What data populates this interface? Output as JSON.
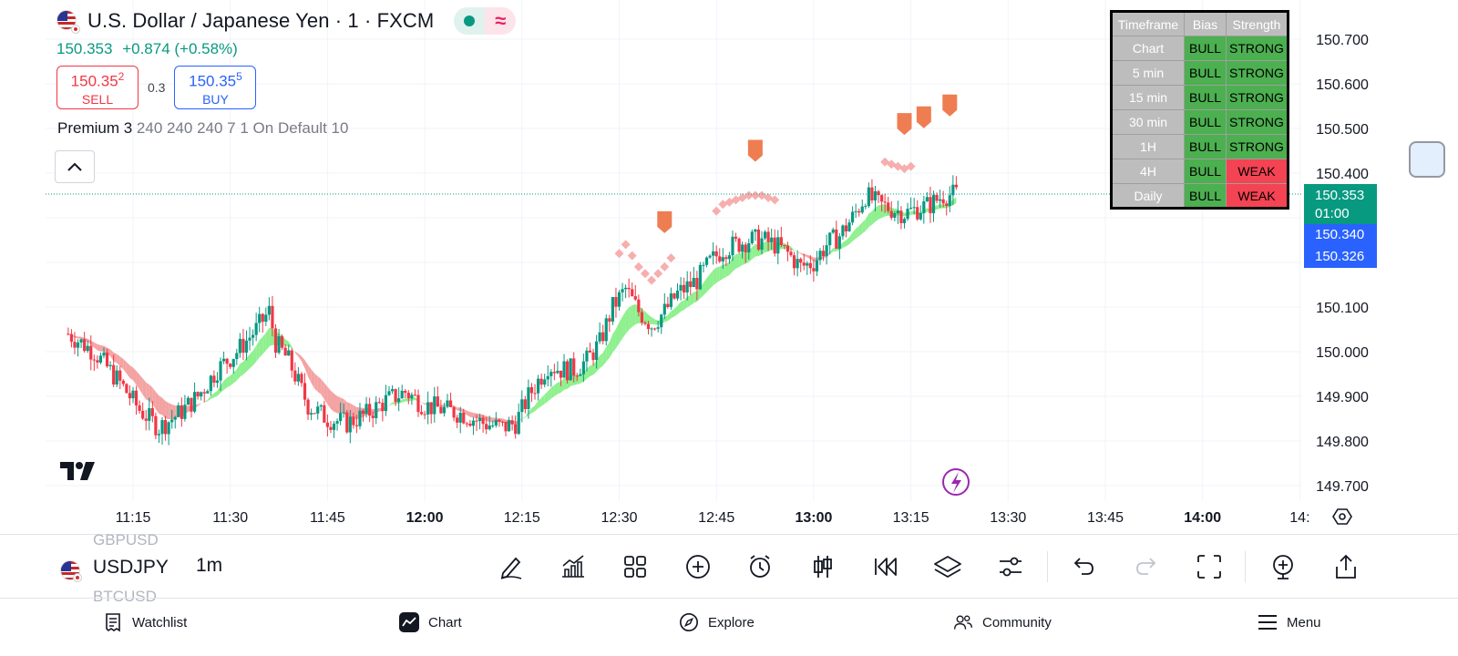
{
  "header": {
    "title": "U.S. Dollar / Japanese Yen · 1 · FXCM",
    "status_icon": "market-open-dot",
    "wave_icon": "≈"
  },
  "quote": {
    "last": "150.353",
    "change": "+0.874 (+0.58%)"
  },
  "trade": {
    "sell_price": "150.35",
    "sell_pip": "2",
    "sell_label": "SELL",
    "spread": "0.3",
    "buy_price": "150.35",
    "buy_pip": "5",
    "buy_label": "BUY"
  },
  "indicator": {
    "name": "Premium 3",
    "params": "240 240 240 7 1 On Default 10"
  },
  "bias_table": {
    "headers": [
      "Timeframe",
      "Bias",
      "Strength"
    ],
    "rows": [
      {
        "tf": "Chart",
        "bias": "BULL",
        "strength": "STRONG"
      },
      {
        "tf": "5 min",
        "bias": "BULL",
        "strength": "STRONG"
      },
      {
        "tf": "15 min",
        "bias": "BULL",
        "strength": "STRONG"
      },
      {
        "tf": "30 min",
        "bias": "BULL",
        "strength": "STRONG"
      },
      {
        "tf": "1H",
        "bias": "BULL",
        "strength": "STRONG"
      },
      {
        "tf": "4H",
        "bias": "BULL",
        "strength": "WEAK"
      },
      {
        "tf": "Daily",
        "bias": "BULL",
        "strength": "WEAK"
      }
    ]
  },
  "price_tags": {
    "last": "150.353",
    "countdown": "01:00",
    "bid": "150.340",
    "ask": "150.326"
  },
  "toolbar": {
    "ghost_above": "GBPUSD",
    "symbol": "USDJPY",
    "ghost_below": "BTCUSD",
    "interval": "1m",
    "icons": [
      "pencil-icon",
      "indicators-icon",
      "layout-icon",
      "add-icon",
      "alert-icon",
      "candle-type-icon",
      "replay-icon",
      "layers-icon",
      "settings-sliders-icon",
      "undo-icon",
      "redo-icon",
      "fullscreen-icon",
      "zoom-icon",
      "share-icon"
    ]
  },
  "nav": {
    "watchlist": "Watchlist",
    "chart": "Chart",
    "explore": "Explore",
    "community": "Community",
    "menu": "Menu"
  },
  "colors": {
    "up": "#089981",
    "down": "#f23645",
    "ribbon_bull": "#8ef08e",
    "ribbon_bear": "#f4a3a3",
    "accent": "#2962ff"
  },
  "chart_data": {
    "type": "candlestick",
    "symbol": "USDJPY",
    "y_ticks": [
      "150.700",
      "150.600",
      "150.500",
      "150.400",
      "150.100",
      "150.000",
      "149.900",
      "149.800",
      "149.700"
    ],
    "ylim": [
      149.68,
      150.72
    ],
    "x_ticks": [
      "11:15",
      "11:30",
      "11:45",
      "12:00",
      "12:15",
      "12:30",
      "12:45",
      "13:00",
      "13:15",
      "13:30",
      "13:45",
      "14:00",
      "14:"
    ],
    "x_bold": [
      "12:00",
      "13:00",
      "14:00"
    ],
    "x_tick_minutes": [
      675,
      690,
      705,
      720,
      735,
      750,
      765,
      780,
      795,
      810,
      825,
      840,
      855
    ],
    "last_price": 150.353,
    "path": [
      [
        665,
        150.04
      ],
      [
        669,
        150.0
      ],
      [
        673,
        149.93
      ],
      [
        676,
        149.87
      ],
      [
        679,
        149.83
      ],
      [
        682,
        149.86
      ],
      [
        685,
        149.9
      ],
      [
        688,
        149.96
      ],
      [
        691,
        150.0
      ],
      [
        694,
        150.05
      ],
      [
        696,
        150.09
      ],
      [
        697,
        150.02
      ],
      [
        699,
        149.98
      ],
      [
        702,
        149.88
      ],
      [
        705,
        149.85
      ],
      [
        708,
        149.84
      ],
      [
        711,
        149.86
      ],
      [
        714,
        149.89
      ],
      [
        717,
        149.91
      ],
      [
        720,
        149.88
      ],
      [
        723,
        149.87
      ],
      [
        726,
        149.86
      ],
      [
        729,
        149.84
      ],
      [
        732,
        149.83
      ],
      [
        734,
        149.84
      ],
      [
        736,
        149.9
      ],
      [
        739,
        149.97
      ],
      [
        741,
        149.96
      ],
      [
        743,
        149.96
      ],
      [
        745,
        149.98
      ],
      [
        747,
        150.02
      ],
      [
        749,
        150.1
      ],
      [
        751,
        150.14
      ],
      [
        753,
        150.09
      ],
      [
        755,
        150.06
      ],
      [
        757,
        150.09
      ],
      [
        759,
        150.13
      ],
      [
        762,
        150.16
      ],
      [
        764,
        150.2
      ],
      [
        766,
        150.23
      ],
      [
        768,
        150.24
      ],
      [
        770,
        150.25
      ],
      [
        772,
        150.25
      ],
      [
        774,
        150.24
      ],
      [
        776,
        150.22
      ],
      [
        778,
        150.19
      ],
      [
        780,
        150.2
      ],
      [
        782,
        150.24
      ],
      [
        784,
        150.26
      ],
      [
        786,
        150.3
      ],
      [
        788,
        150.35
      ],
      [
        790,
        150.33
      ],
      [
        792,
        150.32
      ],
      [
        794,
        150.31
      ],
      [
        796,
        150.32
      ],
      [
        798,
        150.33
      ],
      [
        800,
        150.35
      ],
      [
        802,
        150.353
      ]
    ]
  }
}
